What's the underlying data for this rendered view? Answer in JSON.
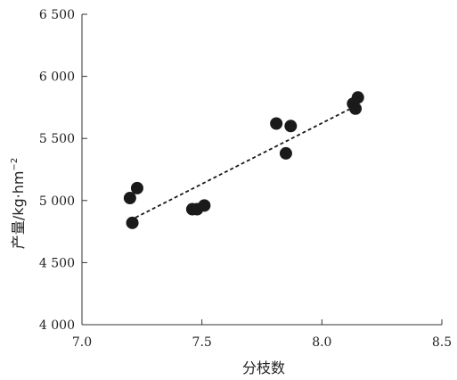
{
  "chart_data": {
    "type": "scatter",
    "xlabel": "分枝数",
    "ylabel": "产量/kg·hm",
    "ylabel_sup": "−2",
    "xlim": [
      7.0,
      8.5
    ],
    "ylim": [
      4000,
      6500
    ],
    "x_ticks": [
      {
        "value": 7.0,
        "label": "7.0"
      },
      {
        "value": 7.5,
        "label": "7.5"
      },
      {
        "value": 8.0,
        "label": "8.0"
      },
      {
        "value": 8.5,
        "label": "8.5"
      }
    ],
    "y_ticks": [
      {
        "value": 4000,
        "label": "4 000"
      },
      {
        "value": 4500,
        "label": "4 500"
      },
      {
        "value": 5000,
        "label": "5 000"
      },
      {
        "value": 5500,
        "label": "5 500"
      },
      {
        "value": 6000,
        "label": "6 000"
      },
      {
        "value": 6500,
        "label": "6 500"
      }
    ],
    "points": [
      {
        "x": 7.2,
        "y": 5020
      },
      {
        "x": 7.23,
        "y": 5100
      },
      {
        "x": 7.21,
        "y": 4820
      },
      {
        "x": 7.46,
        "y": 4930
      },
      {
        "x": 7.48,
        "y": 4930
      },
      {
        "x": 7.51,
        "y": 4960
      },
      {
        "x": 7.81,
        "y": 5620
      },
      {
        "x": 7.87,
        "y": 5600
      },
      {
        "x": 7.85,
        "y": 5380
      },
      {
        "x": 8.13,
        "y": 5780
      },
      {
        "x": 8.14,
        "y": 5740
      },
      {
        "x": 8.15,
        "y": 5830
      }
    ],
    "trendline": {
      "x": [
        7.2,
        8.15
      ],
      "y": [
        4840,
        5770
      ],
      "style": "dashed"
    },
    "marker_color": "#1a1a1a",
    "grid": false,
    "legend": "none"
  }
}
